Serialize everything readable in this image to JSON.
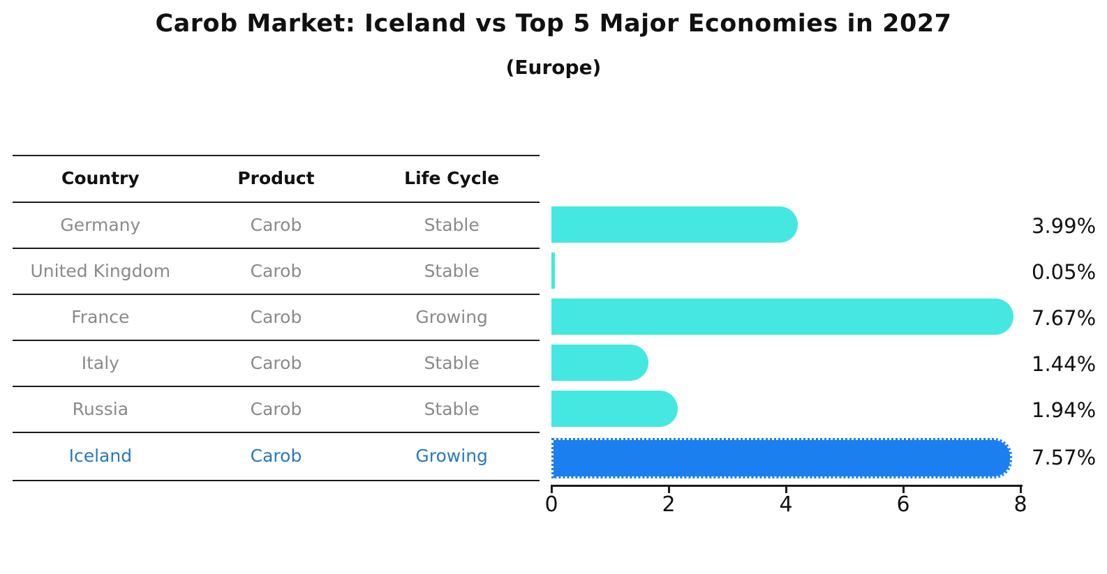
{
  "title": "Carob Market: Iceland vs Top 5 Major Economies in 2027",
  "subtitle": "(Europe)",
  "table": {
    "headers": [
      "Country",
      "Product",
      "Life Cycle"
    ],
    "rows": [
      {
        "country": "Germany",
        "product": "Carob",
        "life_cycle": "Stable",
        "highlighted": false
      },
      {
        "country": "United Kingdom",
        "product": "Carob",
        "life_cycle": "Stable",
        "highlighted": false
      },
      {
        "country": "France",
        "product": "Carob",
        "life_cycle": "Growing",
        "highlighted": false
      },
      {
        "country": "Italy",
        "product": "Carob",
        "life_cycle": "Stable",
        "highlighted": false
      },
      {
        "country": "Russia",
        "product": "Carob",
        "life_cycle": "Stable",
        "highlighted": false
      },
      {
        "country": "Iceland",
        "product": "Carob",
        "life_cycle": "Growing",
        "highlighted": true
      }
    ]
  },
  "chart_data": {
    "type": "bar",
    "orientation": "horizontal",
    "title": "Carob Market: Iceland vs Top 5 Major Economies in 2027",
    "subtitle": "(Europe)",
    "categories": [
      "Germany",
      "United Kingdom",
      "France",
      "Italy",
      "Russia",
      "Iceland"
    ],
    "values": [
      3.99,
      0.05,
      7.67,
      1.44,
      1.94,
      7.57
    ],
    "value_labels": [
      "3.99%",
      "0.05%",
      "7.67%",
      "1.44%",
      "1.94%",
      "7.57%"
    ],
    "xlabel": "",
    "ylabel": "",
    "xlim": [
      0,
      8
    ],
    "x_ticks": [
      "0",
      "2",
      "4",
      "6",
      "8"
    ],
    "grid": false,
    "legend": false,
    "highlight_index": 5,
    "bar_color": "#45e8e0",
    "highlight_bar_color": "#1b7ff0",
    "highlight_text_color": "#2878be"
  },
  "colors": {
    "bar_cyan": "#45e8e0",
    "bar_blue": "#1b7ff0",
    "table_text_gray": "#8a8a8a",
    "table_text_blue": "#2878be",
    "line_black": "#1a1a1a"
  }
}
